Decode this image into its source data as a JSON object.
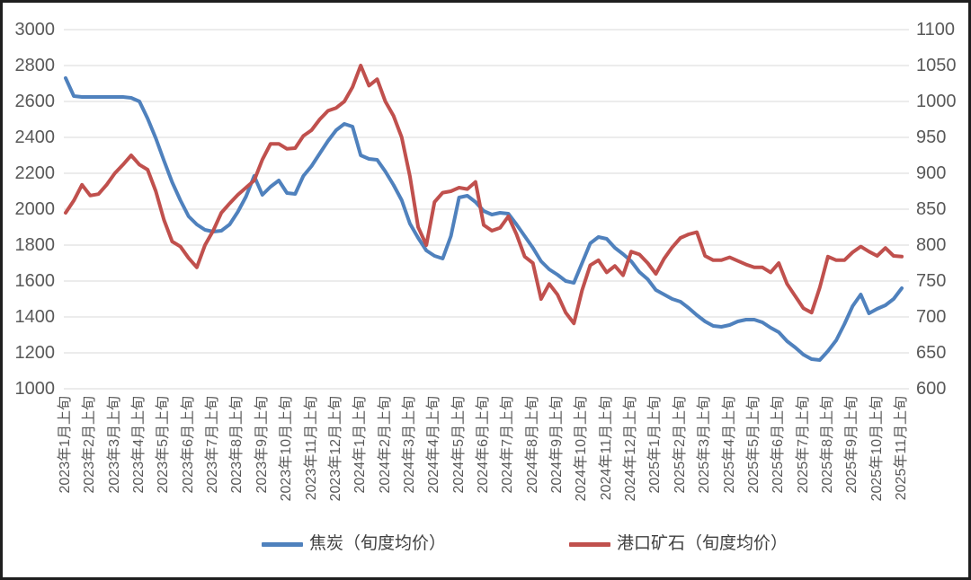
{
  "chart_data": {
    "type": "line",
    "title": "",
    "grid": true,
    "legend_position": "bottom",
    "points_per_month": 3,
    "x_tick_labels": [
      "2023年1月上旬",
      "2023年2月上旬",
      "2023年3月上旬",
      "2023年4月上旬",
      "2023年5月上旬",
      "2023年6月上旬",
      "2023年7月上旬",
      "2023年8月上旬",
      "2023年9月上旬",
      "2023年10月上旬",
      "2023年11月上旬",
      "2023年12月上旬",
      "2024年1月上旬",
      "2024年2月上旬",
      "2024年3月上旬",
      "2024年4月上旬",
      "2024年5月上旬",
      "2024年6月上旬",
      "2024年7月上旬",
      "2024年8月上旬",
      "2024年9月上旬",
      "2024年10月上旬",
      "2024年11月上旬",
      "2024年12月上旬",
      "2025年1月上旬",
      "2025年2月上旬",
      "2025年3月上旬",
      "2025年4月上旬",
      "2025年5月上旬",
      "2025年6月上旬",
      "2025年7月上旬",
      "2025年8月上旬",
      "2025年9月上旬",
      "2025年10月上旬",
      "2025年11月上旬"
    ],
    "left_axis": {
      "min": 1000,
      "max": 3000,
      "step": 200,
      "ticks": [
        3000,
        2800,
        2600,
        2400,
        2200,
        2000,
        1800,
        1600,
        1400,
        1200,
        1000
      ]
    },
    "right_axis": {
      "min": 600,
      "max": 1100,
      "step": 50,
      "ticks": [
        1100,
        1050,
        1000,
        950,
        900,
        850,
        800,
        750,
        700,
        650,
        600
      ]
    },
    "colors": {
      "grid": "#d9d9d9",
      "axis_text": "#595959",
      "frame": "#1f1f1f"
    },
    "series": [
      {
        "name": "焦炭（旬度均价）",
        "axis": "left",
        "color": "#4F81BD",
        "values": [
          2730,
          2630,
          2625,
          2625,
          2625,
          2625,
          2625,
          2625,
          2620,
          2600,
          2505,
          2395,
          2270,
          2150,
          2050,
          1960,
          1915,
          1885,
          1875,
          1880,
          1915,
          1985,
          2070,
          2185,
          2080,
          2125,
          2160,
          2090,
          2085,
          2185,
          2240,
          2310,
          2380,
          2440,
          2475,
          2460,
          2300,
          2280,
          2275,
          2210,
          2135,
          2050,
          1920,
          1840,
          1770,
          1740,
          1725,
          1850,
          2065,
          2075,
          2040,
          1990,
          1970,
          1980,
          1975,
          1915,
          1850,
          1785,
          1710,
          1665,
          1635,
          1600,
          1590,
          1700,
          1810,
          1845,
          1835,
          1785,
          1750,
          1710,
          1650,
          1610,
          1550,
          1525,
          1500,
          1485,
          1450,
          1410,
          1375,
          1350,
          1345,
          1355,
          1375,
          1385,
          1385,
          1370,
          1340,
          1315,
          1265,
          1230,
          1190,
          1165,
          1160,
          1210,
          1270,
          1360,
          1460,
          1525,
          1420,
          1445,
          1465,
          1500,
          1560
        ]
      },
      {
        "name": "港口矿石（旬度均价）",
        "axis": "right",
        "color": "#C0504D",
        "values": [
          845,
          862,
          884,
          869,
          871,
          884,
          900,
          912,
          925,
          912,
          905,
          875,
          835,
          805,
          798,
          782,
          769,
          800,
          820,
          845,
          858,
          870,
          880,
          890,
          919,
          941,
          941,
          934,
          935,
          952,
          960,
          975,
          987,
          991,
          1000,
          1020,
          1050,
          1022,
          1031,
          1000,
          980,
          950,
          896,
          825,
          800,
          860,
          873,
          875,
          880,
          878,
          888,
          828,
          820,
          824,
          840,
          815,
          784,
          775,
          725,
          746,
          731,
          706,
          691,
          737,
          772,
          779,
          762,
          771,
          758,
          791,
          787,
          775,
          760,
          781,
          797,
          810,
          815,
          818,
          785,
          779,
          779,
          783,
          778,
          773,
          769,
          769,
          762,
          775,
          746,
          729,
          712,
          706,
          741,
          784,
          779,
          779,
          790,
          798,
          791,
          785,
          796,
          785,
          784
        ]
      }
    ]
  }
}
